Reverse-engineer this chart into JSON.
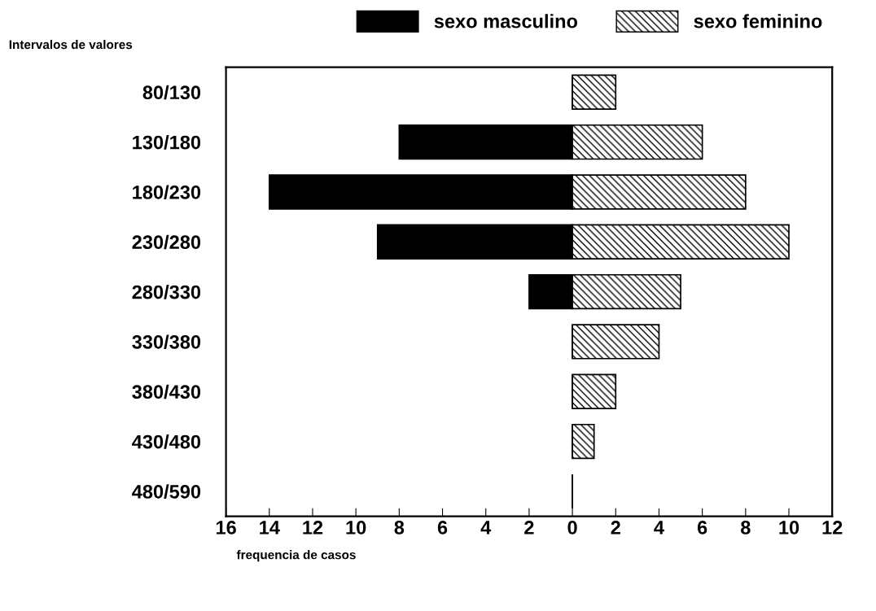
{
  "chart_data": {
    "type": "bar",
    "orientation": "horizontal",
    "stacked": false,
    "ylabel": "Intervalos de valores",
    "xlabel": "frequencia de casos",
    "categories": [
      "80/130",
      "130/180",
      "180/230",
      "230/280",
      "280/330",
      "330/380",
      "380/430",
      "430/480",
      "480/590"
    ],
    "series": [
      {
        "name": "sexo masculino",
        "color": "#000000",
        "values": [
          0,
          -8,
          -14,
          -9,
          -2,
          0,
          0,
          0,
          0
        ]
      },
      {
        "name": "sexo feminino",
        "color": "#000000",
        "values": [
          2,
          6,
          8,
          10,
          5,
          4,
          2,
          1,
          0
        ]
      }
    ],
    "xlim": [
      -16,
      12
    ],
    "xticks": [
      {
        "value": -16,
        "label": "16"
      },
      {
        "value": -14,
        "label": "14"
      },
      {
        "value": -12,
        "label": "12"
      },
      {
        "value": -10,
        "label": "10"
      },
      {
        "value": -8,
        "label": "8"
      },
      {
        "value": -6,
        "label": "6"
      },
      {
        "value": -4,
        "label": "4"
      },
      {
        "value": -2,
        "label": "2"
      },
      0,
      2,
      4,
      6,
      8,
      10,
      12
    ],
    "grid": false,
    "legend": "top"
  }
}
